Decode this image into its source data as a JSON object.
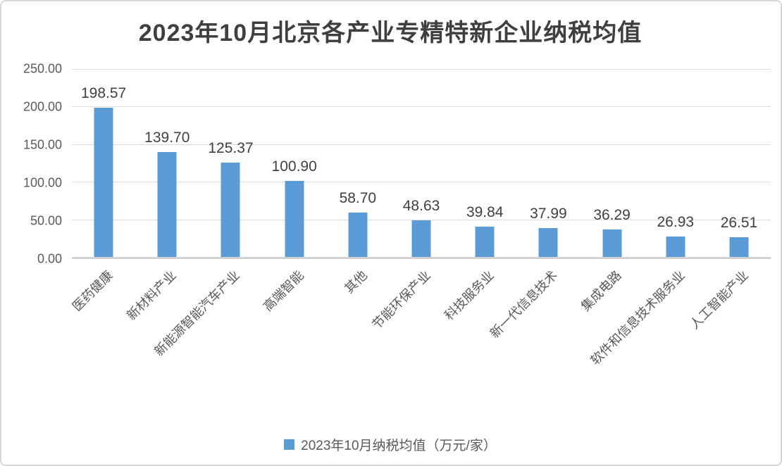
{
  "chart_data": {
    "type": "bar",
    "title": "2023年10月北京各产业专精特新企业纳税均值",
    "categories": [
      "医药健康",
      "新材料产业",
      "新能源智能汽车产业",
      "高端智能",
      "其他",
      "节能环保产业",
      "科技服务业",
      "新一代信息技术",
      "集成电路",
      "软件和信息技术服务业",
      "人工智能产业"
    ],
    "values": [
      198.57,
      139.7,
      125.37,
      100.9,
      58.7,
      48.63,
      39.84,
      37.99,
      36.29,
      26.93,
      26.51
    ],
    "legend": [
      "2023年10月纳税均值（万元/家）"
    ],
    "legend_position": "bottom",
    "xlabel": "",
    "ylabel": "",
    "ylim": [
      0,
      250
    ],
    "yticks": [
      250,
      200,
      150,
      100,
      50,
      0
    ],
    "ytick_decimals": 2,
    "value_label_decimals": 2,
    "grid": true,
    "x_label_rotation_deg": 45,
    "colors": {
      "bar": "#5B9BD5",
      "gridline": "#DCDCDC",
      "baseline": "#D2D2D2",
      "frame_border": "#D8D8D8",
      "title_text": "#3F3F3F",
      "axis_text": "#595959",
      "value_label_text": "#404040"
    }
  }
}
